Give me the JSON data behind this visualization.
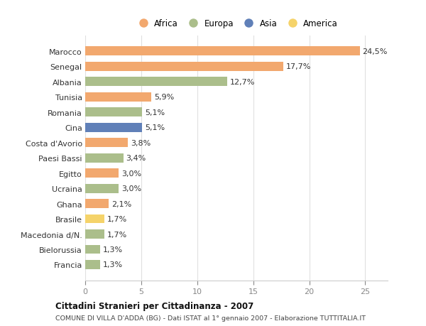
{
  "countries": [
    "Marocco",
    "Senegal",
    "Albania",
    "Tunisia",
    "Romania",
    "Cina",
    "Costa d'Avorio",
    "Paesi Bassi",
    "Egitto",
    "Ucraina",
    "Ghana",
    "Brasile",
    "Macedonia d/N.",
    "Bielorussia",
    "Francia"
  ],
  "values": [
    24.5,
    17.7,
    12.7,
    5.9,
    5.1,
    5.1,
    3.8,
    3.4,
    3.0,
    3.0,
    2.1,
    1.7,
    1.7,
    1.3,
    1.3
  ],
  "labels": [
    "24,5%",
    "17,7%",
    "12,7%",
    "5,9%",
    "5,1%",
    "5,1%",
    "3,8%",
    "3,4%",
    "3,0%",
    "3,0%",
    "2,1%",
    "1,7%",
    "1,7%",
    "1,3%",
    "1,3%"
  ],
  "continents": [
    "Africa",
    "Africa",
    "Europa",
    "Africa",
    "Europa",
    "Asia",
    "Africa",
    "Europa",
    "Africa",
    "Europa",
    "Africa",
    "America",
    "Europa",
    "Europa",
    "Europa"
  ],
  "continent_colors": {
    "Africa": "#F2A86E",
    "Europa": "#ABBE8B",
    "Asia": "#6080B8",
    "America": "#F5D36A"
  },
  "legend_order": [
    "Africa",
    "Europa",
    "Asia",
    "America"
  ],
  "title": "Cittadini Stranieri per Cittadinanza - 2007",
  "subtitle": "COMUNE DI VILLA D'ADDA (BG) - Dati ISTAT al 1° gennaio 2007 - Elaborazione TUTTITALIA.IT",
  "xlim": [
    0,
    27
  ],
  "xticks": [
    0,
    5,
    10,
    15,
    20,
    25
  ],
  "background_color": "#ffffff",
  "plot_bg_color": "#ffffff",
  "grid_color": "#e0e0e0",
  "label_fontsize": 8,
  "ytick_fontsize": 8,
  "xtick_fontsize": 8
}
